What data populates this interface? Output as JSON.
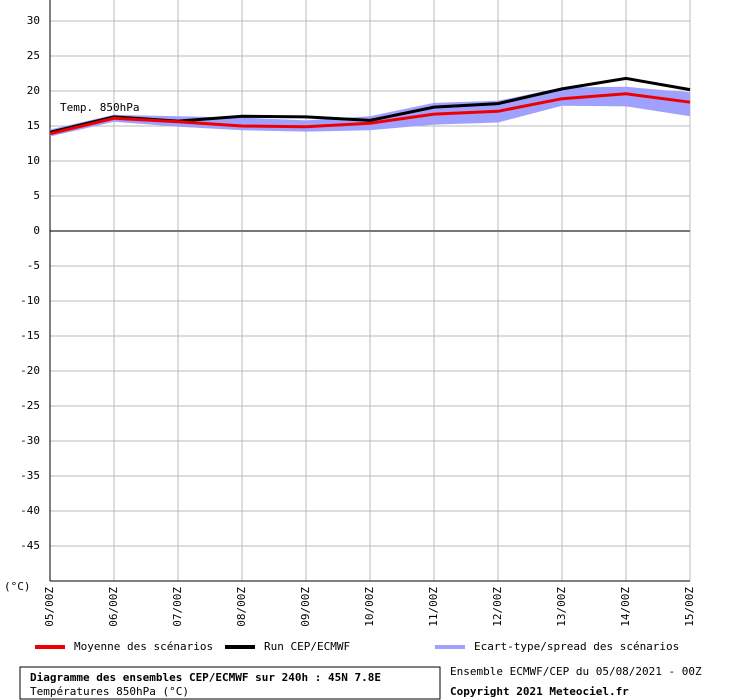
{
  "chart_data": {
    "type": "line",
    "annotation": "Temp. 850hPa",
    "y_unit": "(°C)",
    "categories": [
      "05/00Z",
      "06/00Z",
      "07/00Z",
      "08/00Z",
      "09/00Z",
      "10/00Z",
      "11/00Z",
      "12/00Z",
      "13/00Z",
      "14/00Z",
      "15/00Z"
    ],
    "series": [
      {
        "name": "Moyenne des scénarios",
        "color": "#ee0000",
        "values": [
          13.9,
          16.1,
          15.6,
          15.0,
          14.9,
          15.4,
          16.7,
          17.1,
          18.9,
          19.6,
          18.4
        ]
      },
      {
        "name": "Run CEP/ECMWF",
        "color": "#000000",
        "values": [
          14.1,
          16.3,
          15.7,
          16.4,
          16.3,
          15.8,
          17.7,
          18.2,
          20.3,
          21.8,
          20.2
        ]
      },
      {
        "name": "Ecart-type/spread des scénarios",
        "color": "#a0a0ff",
        "low": [
          13.5,
          15.6,
          14.9,
          14.4,
          14.2,
          14.4,
          15.2,
          15.5,
          17.9,
          17.8,
          16.4
        ],
        "high": [
          14.5,
          16.6,
          16.4,
          16.2,
          15.8,
          16.4,
          18.3,
          18.6,
          20.5,
          20.6,
          19.8
        ]
      }
    ],
    "ylim": [
      -50,
      30
    ],
    "yticks": [
      30,
      25,
      20,
      15,
      10,
      5,
      0,
      -5,
      -10,
      -15,
      -20,
      -25,
      -30,
      -35,
      -40,
      -45
    ],
    "grid": true,
    "footer": {
      "title": "Diagramme des ensembles CEP/ECMWF sur 240h : 45N 7.8E",
      "subtitle": "Températures 850hPa (°C)",
      "run": "Ensemble ECMWF/CEP du 05/08/2021 - 00Z",
      "copyright": "Copyright 2021 Meteociel.fr"
    }
  }
}
